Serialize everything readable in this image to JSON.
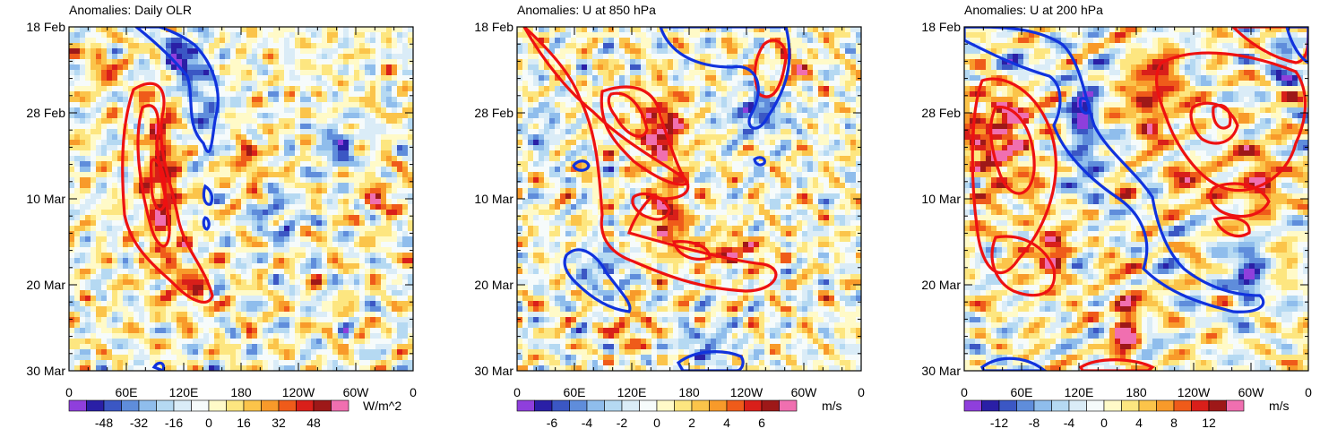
{
  "chart_data": [
    {
      "type": "heatmap",
      "title": "Anomalies: Daily OLR",
      "x_ticks": [
        "0",
        "60E",
        "120E",
        "180",
        "120W",
        "60W",
        "0"
      ],
      "y_ticks": [
        "18 Feb",
        "28 Feb",
        "10 Mar",
        "20 Mar",
        "30 Mar"
      ],
      "colorbar": {
        "labels": [
          "-48",
          "-32",
          "-16",
          "0",
          "16",
          "32",
          "48"
        ],
        "units": "W/m^2",
        "range": [
          -60,
          60
        ],
        "bins": 16
      }
    },
    {
      "type": "heatmap",
      "title": "Anomalies: U at 850 hPa",
      "x_ticks": [
        "0",
        "60E",
        "120E",
        "180",
        "120W",
        "60W",
        "0"
      ],
      "y_ticks": [
        "18 Feb",
        "28 Feb",
        "10 Mar",
        "20 Mar",
        "30 Mar"
      ],
      "colorbar": {
        "labels": [
          "-6",
          "-4",
          "-2",
          "0",
          "2",
          "4",
          "6"
        ],
        "units": "m/s",
        "range": [
          -7.5,
          7.5
        ],
        "bins": 16
      }
    },
    {
      "type": "heatmap",
      "title": "Anomalies: U at 200 hPa",
      "x_ticks": [
        "0",
        "60E",
        "120E",
        "180",
        "120W",
        "60W",
        "0"
      ],
      "y_ticks": [
        "18 Feb",
        "28 Feb",
        "10 Mar",
        "20 Mar",
        "30 Mar"
      ],
      "colorbar": {
        "labels": [
          "-12",
          "-8",
          "-4",
          "0",
          "4",
          "8",
          "12"
        ],
        "units": "m/s",
        "range": [
          -15,
          15
        ],
        "bins": 16
      }
    }
  ],
  "palette": [
    "#8f3fdc",
    "#2a1fa6",
    "#3b57c4",
    "#5f8ddb",
    "#8fbdec",
    "#b5d9f2",
    "#daecf7",
    "#f6fbfb",
    "#fffac8",
    "#fde680",
    "#fbc44a",
    "#f89a2a",
    "#ef5b1a",
    "#d91f1a",
    "#9e1818",
    "#f06fb0"
  ],
  "contour_colors": {
    "positive": "#ee1111",
    "negative": "#1133dd"
  }
}
